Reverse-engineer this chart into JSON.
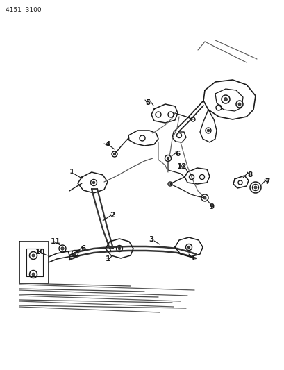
{
  "title_code": "4151  3100",
  "bg_color": "#ffffff",
  "lc": "#1a1a1a",
  "figsize": [
    4.1,
    5.33
  ],
  "dpi": 100
}
